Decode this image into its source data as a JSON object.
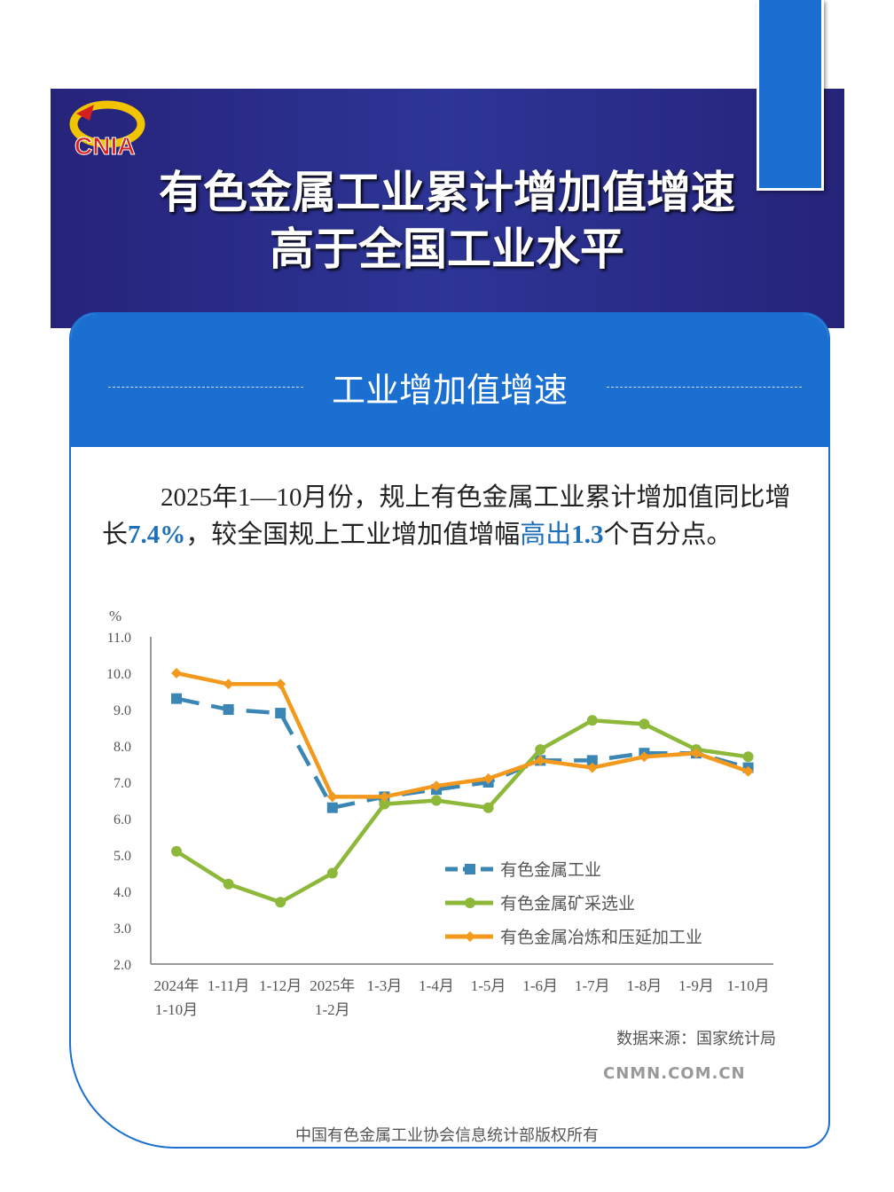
{
  "header": {
    "logo_text": "CNIA",
    "title_line1": "有色金属工业累计增加值增速",
    "title_line2": "高于全国工业水平"
  },
  "section": {
    "title": "工业增加值增速"
  },
  "paragraph": {
    "part1": "2025年1—10月份，规上有色金属工业累计增加值同比增长",
    "value1": "7.4%",
    "part2": "，较全国规上工业增加值增幅",
    "highlight": "高出",
    "value2": "1.3",
    "part3": "个百分点。"
  },
  "chart_data": {
    "type": "line",
    "ylabel": "%",
    "ylim": [
      2.0,
      11.0
    ],
    "yticks": [
      "2.0",
      "3.0",
      "4.0",
      "5.0",
      "6.0",
      "7.0",
      "8.0",
      "9.0",
      "10.0",
      "11.0"
    ],
    "categories": [
      [
        "2024年",
        "1-10月"
      ],
      [
        "1-11月"
      ],
      [
        "1-12月"
      ],
      [
        "2025年",
        "1-2月"
      ],
      [
        "1-3月"
      ],
      [
        "1-4月"
      ],
      [
        "1-5月"
      ],
      [
        "1-6月"
      ],
      [
        "1-7月"
      ],
      [
        "1-8月"
      ],
      [
        "1-9月"
      ],
      [
        "1-10月"
      ]
    ],
    "series": [
      {
        "name": "有色金属工业",
        "color": "#3a86b4",
        "dashed": true,
        "marker": "square",
        "values": [
          9.3,
          9.0,
          8.9,
          6.3,
          6.6,
          6.8,
          7.0,
          7.6,
          7.6,
          7.8,
          7.8,
          7.4
        ]
      },
      {
        "name": "有色金属矿采选业",
        "color": "#8db83a",
        "dashed": false,
        "marker": "circle",
        "values": [
          5.1,
          4.2,
          3.7,
          4.5,
          6.4,
          6.5,
          6.3,
          7.9,
          8.7,
          8.6,
          7.9,
          7.7
        ]
      },
      {
        "name": "有色金属冶炼和压延加工业",
        "color": "#f39a1e",
        "dashed": false,
        "marker": "diamond",
        "values": [
          10.0,
          9.7,
          9.7,
          6.6,
          6.6,
          6.9,
          7.1,
          7.6,
          7.4,
          7.7,
          7.8,
          7.3
        ]
      }
    ],
    "legend": "center-right"
  },
  "source": "数据来源：国家统计局",
  "watermark": "CNMN.COM.CN",
  "watermark_text": "中国有色金属工业协会",
  "footer": "中国有色金属工业协会信息统计部版权所有"
}
